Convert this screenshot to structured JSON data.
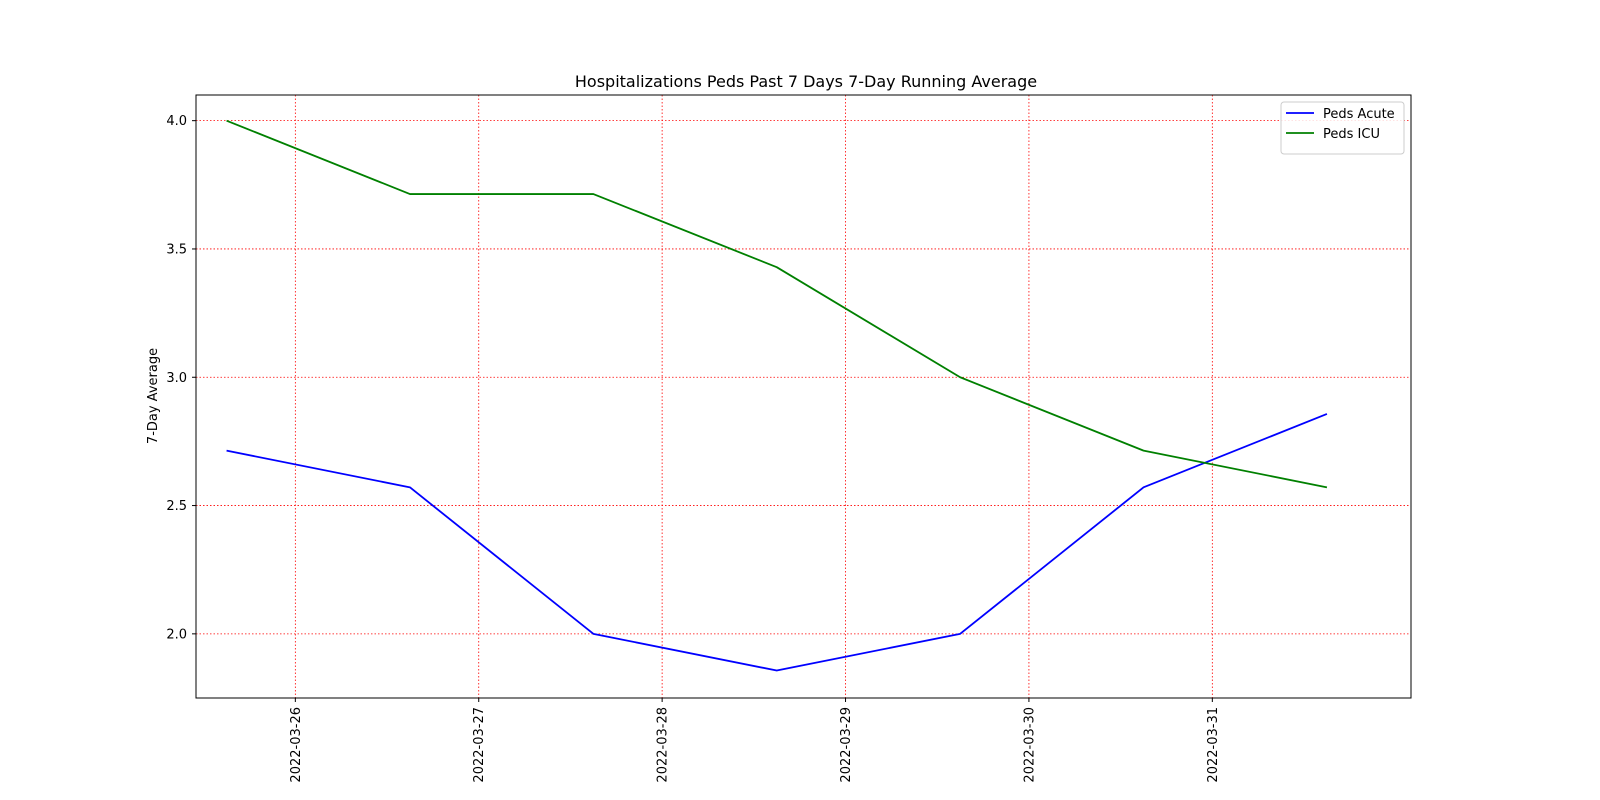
{
  "chart_data": {
    "type": "line",
    "title": "Hospitalizations Peds Past 7 Days 7-Day Running Average",
    "xlabel": "",
    "ylabel": "7-Day Average",
    "x": [
      "2022-03-25 15:00",
      "2022-03-26 15:00",
      "2022-03-27 15:00",
      "2022-03-28 15:00",
      "2022-03-29 15:00",
      "2022-03-30 15:00",
      "2022-03-31 15:00"
    ],
    "x_ticks": [
      "2022-03-26",
      "2022-03-27",
      "2022-03-28",
      "2022-03-29",
      "2022-03-30",
      "2022-03-31"
    ],
    "y_ticks": [
      "2.0",
      "2.5",
      "3.0",
      "3.5",
      "4.0"
    ],
    "ylim": [
      1.75,
      4.1
    ],
    "xlim": [
      "2022-03-25 11:00",
      "2022-04-01 02:00"
    ],
    "grid": true,
    "grid_color": "#ff0000",
    "legend_position": "top-right",
    "series": [
      {
        "name": "Peds Acute",
        "color": "#0000ff",
        "values": [
          2.714,
          2.571,
          2.0,
          1.857,
          2.0,
          2.571,
          2.857
        ]
      },
      {
        "name": "Peds ICU",
        "color": "#008000",
        "values": [
          4.0,
          3.714,
          3.714,
          3.429,
          3.0,
          2.714,
          2.571
        ]
      }
    ]
  }
}
